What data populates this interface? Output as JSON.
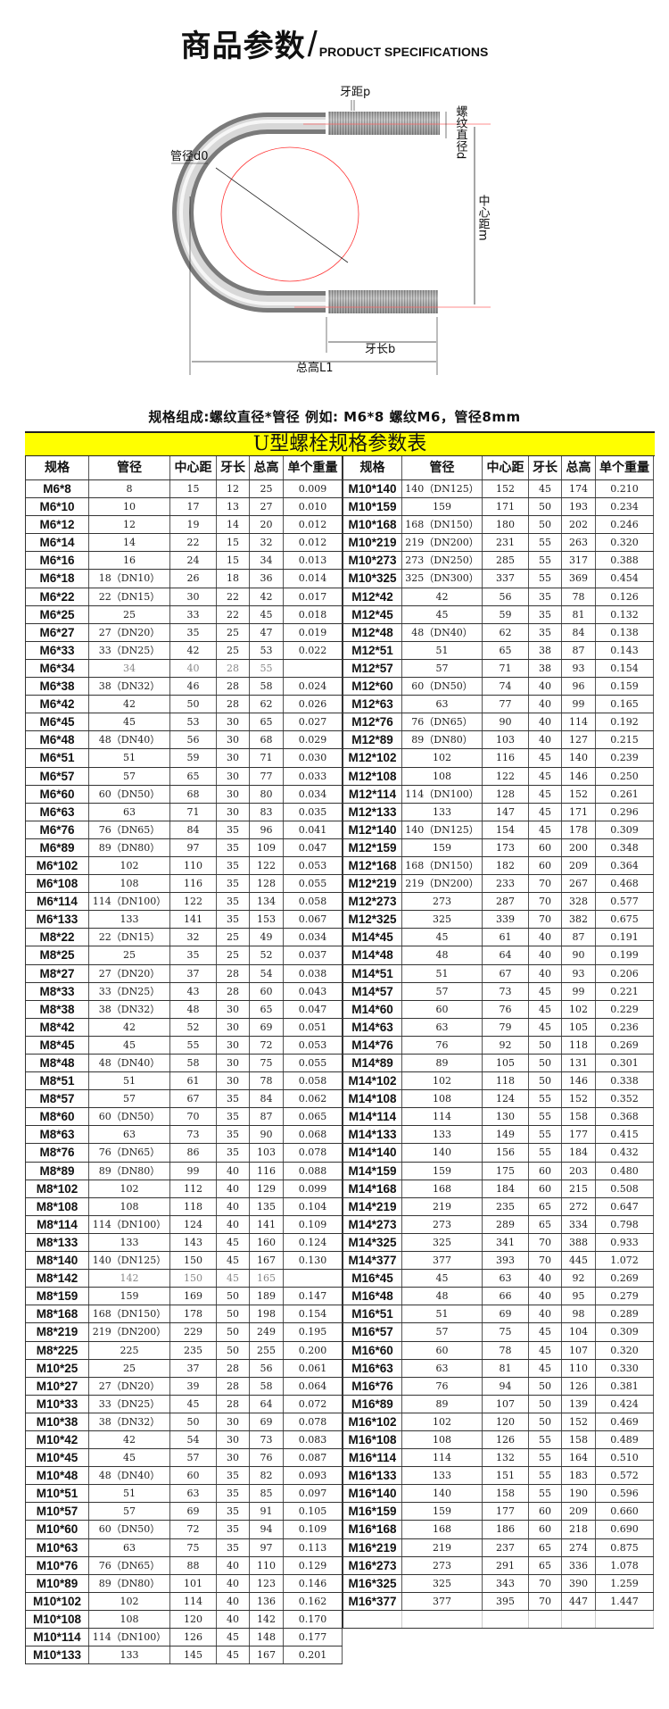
{
  "header": {
    "title_cn": "商品参数",
    "title_sep": "/",
    "title_en": "PRODUCT SPECIFICATIONS"
  },
  "diagram": {
    "labels": {
      "pitch": "牙距p",
      "thread_diameter": "螺纹直径d",
      "pipe_diameter": "管径d0",
      "center_distance": "中心距m",
      "thread_length": "牙长b",
      "total_height": "总高L1"
    },
    "colors": {
      "bolt": "#b8b8b8",
      "guide_circle": "#ff3333"
    }
  },
  "description": "规格组成:螺纹直径*管径 例如: M6*8 螺纹M6，管径8mm",
  "table": {
    "title": "U型螺栓规格参数表",
    "title_bg": "#ffff00",
    "columns": [
      "规格",
      "管径",
      "中心距",
      "牙长",
      "总高",
      "单个重量"
    ],
    "muted_rows": [
      "M6*34",
      "M8*142"
    ],
    "left_rows": [
      [
        "M6*8",
        "8",
        "15",
        "12",
        "25",
        "0.009"
      ],
      [
        "M6*10",
        "10",
        "17",
        "13",
        "27",
        "0.010"
      ],
      [
        "M6*12",
        "12",
        "19",
        "14",
        "20",
        "0.012"
      ],
      [
        "M6*14",
        "14",
        "22",
        "15",
        "32",
        "0.012"
      ],
      [
        "M6*16",
        "16",
        "24",
        "15",
        "34",
        "0.013"
      ],
      [
        "M6*18",
        "18（DN10）",
        "26",
        "18",
        "36",
        "0.014"
      ],
      [
        "M6*22",
        "22（DN15）",
        "30",
        "22",
        "42",
        "0.017"
      ],
      [
        "M6*25",
        "25",
        "33",
        "22",
        "45",
        "0.018"
      ],
      [
        "M6*27",
        "27（DN20）",
        "35",
        "25",
        "47",
        "0.019"
      ],
      [
        "M6*33",
        "33（DN25）",
        "42",
        "25",
        "53",
        "0.022"
      ],
      [
        "M6*34",
        "34",
        "40",
        "28",
        "55",
        ""
      ],
      [
        "M6*38",
        "38（DN32）",
        "46",
        "28",
        "58",
        "0.024"
      ],
      [
        "M6*42",
        "42",
        "50",
        "28",
        "62",
        "0.026"
      ],
      [
        "M6*45",
        "45",
        "53",
        "30",
        "65",
        "0.027"
      ],
      [
        "M6*48",
        "48（DN40）",
        "56",
        "30",
        "68",
        "0.029"
      ],
      [
        "M6*51",
        "51",
        "59",
        "30",
        "71",
        "0.030"
      ],
      [
        "M6*57",
        "57",
        "65",
        "30",
        "77",
        "0.033"
      ],
      [
        "M6*60",
        "60（DN50）",
        "68",
        "30",
        "80",
        "0.034"
      ],
      [
        "M6*63",
        "63",
        "71",
        "30",
        "83",
        "0.035"
      ],
      [
        "M6*76",
        "76（DN65）",
        "84",
        "35",
        "96",
        "0.041"
      ],
      [
        "M6*89",
        "89（DN80）",
        "97",
        "35",
        "109",
        "0.047"
      ],
      [
        "M6*102",
        "102",
        "110",
        "35",
        "122",
        "0.053"
      ],
      [
        "M6*108",
        "108",
        "116",
        "35",
        "128",
        "0.055"
      ],
      [
        "M6*114",
        "114（DN100）",
        "122",
        "35",
        "134",
        "0.058"
      ],
      [
        "M6*133",
        "133",
        "141",
        "35",
        "153",
        "0.067"
      ],
      [
        "M8*22",
        "22（DN15）",
        "32",
        "25",
        "49",
        "0.034"
      ],
      [
        "M8*25",
        "25",
        "35",
        "25",
        "52",
        "0.037"
      ],
      [
        "M8*27",
        "27（DN20）",
        "37",
        "28",
        "54",
        "0.038"
      ],
      [
        "M8*33",
        "33（DN25）",
        "43",
        "28",
        "60",
        "0.043"
      ],
      [
        "M8*38",
        "38（DN32）",
        "48",
        "30",
        "65",
        "0.047"
      ],
      [
        "M8*42",
        "42",
        "52",
        "30",
        "69",
        "0.051"
      ],
      [
        "M8*45",
        "45",
        "55",
        "30",
        "72",
        "0.053"
      ],
      [
        "M8*48",
        "48（DN40）",
        "58",
        "30",
        "75",
        "0.055"
      ],
      [
        "M8*51",
        "51",
        "61",
        "30",
        "78",
        "0.058"
      ],
      [
        "M8*57",
        "57",
        "67",
        "35",
        "84",
        "0.062"
      ],
      [
        "M8*60",
        "60（DN50）",
        "70",
        "35",
        "87",
        "0.065"
      ],
      [
        "M8*63",
        "63",
        "73",
        "35",
        "90",
        "0.068"
      ],
      [
        "M8*76",
        "76（DN65）",
        "86",
        "35",
        "103",
        "0.078"
      ],
      [
        "M8*89",
        "89（DN80）",
        "99",
        "40",
        "116",
        "0.088"
      ],
      [
        "M8*102",
        "102",
        "112",
        "40",
        "129",
        "0.099"
      ],
      [
        "M8*108",
        "108",
        "118",
        "40",
        "135",
        "0.104"
      ],
      [
        "M8*114",
        "114（DN100）",
        "124",
        "40",
        "141",
        "0.109"
      ],
      [
        "M8*133",
        "133",
        "143",
        "45",
        "160",
        "0.124"
      ],
      [
        "M8*140",
        "140（DN125）",
        "150",
        "45",
        "167",
        "0.130"
      ],
      [
        "M8*142",
        "142",
        "150",
        "45",
        "165",
        ""
      ],
      [
        "M8*159",
        "159",
        "169",
        "50",
        "189",
        "0.147"
      ],
      [
        "M8*168",
        "168（DN150）",
        "178",
        "50",
        "198",
        "0.154"
      ],
      [
        "M8*219",
        "219（DN200）",
        "229",
        "50",
        "249",
        "0.195"
      ],
      [
        "M8*225",
        "225",
        "235",
        "50",
        "255",
        "0.200"
      ],
      [
        "M10*25",
        "25",
        "37",
        "28",
        "56",
        "0.061"
      ],
      [
        "M10*27",
        "27（DN20）",
        "39",
        "28",
        "58",
        "0.064"
      ],
      [
        "M10*33",
        "33（DN25）",
        "45",
        "28",
        "64",
        "0.072"
      ],
      [
        "M10*38",
        "38（DN32）",
        "50",
        "30",
        "69",
        "0.078"
      ],
      [
        "M10*42",
        "42",
        "54",
        "30",
        "73",
        "0.083"
      ],
      [
        "M10*45",
        "45",
        "57",
        "30",
        "76",
        "0.087"
      ],
      [
        "M10*48",
        "48（DN40）",
        "60",
        "35",
        "82",
        "0.093"
      ],
      [
        "M10*51",
        "51",
        "63",
        "35",
        "85",
        "0.097"
      ],
      [
        "M10*57",
        "57",
        "69",
        "35",
        "91",
        "0.105"
      ],
      [
        "M10*60",
        "60（DN50）",
        "72",
        "35",
        "94",
        "0.109"
      ],
      [
        "M10*63",
        "63",
        "75",
        "35",
        "97",
        "0.113"
      ],
      [
        "M10*76",
        "76（DN65）",
        "88",
        "40",
        "110",
        "0.129"
      ],
      [
        "M10*89",
        "89（DN80）",
        "101",
        "40",
        "123",
        "0.146"
      ],
      [
        "M10*102",
        "102",
        "114",
        "40",
        "136",
        "0.162"
      ],
      [
        "M10*108",
        "108",
        "120",
        "40",
        "142",
        "0.170"
      ],
      [
        "M10*114",
        "114（DN100）",
        "126",
        "45",
        "148",
        "0.177"
      ],
      [
        "M10*133",
        "133",
        "145",
        "45",
        "167",
        "0.201"
      ]
    ],
    "right_rows": [
      [
        "M10*140",
        "140（DN125）",
        "152",
        "45",
        "174",
        "0.210"
      ],
      [
        "M10*159",
        "159",
        "171",
        "50",
        "193",
        "0.234"
      ],
      [
        "M10*168",
        "168（DN150）",
        "180",
        "50",
        "202",
        "0.246"
      ],
      [
        "M10*219",
        "219（DN200）",
        "231",
        "55",
        "263",
        "0.320"
      ],
      [
        "M10*273",
        "273（DN250）",
        "285",
        "55",
        "317",
        "0.388"
      ],
      [
        "M10*325",
        "325（DN300）",
        "337",
        "55",
        "369",
        "0.454"
      ],
      [
        "M12*42",
        "42",
        "56",
        "35",
        "78",
        "0.126"
      ],
      [
        "M12*45",
        "45",
        "59",
        "35",
        "81",
        "0.132"
      ],
      [
        "M12*48",
        "48（DN40）",
        "62",
        "35",
        "84",
        "0.138"
      ],
      [
        "M12*51",
        "51",
        "65",
        "38",
        "87",
        "0.143"
      ],
      [
        "M12*57",
        "57",
        "71",
        "38",
        "93",
        "0.154"
      ],
      [
        "M12*60",
        "60（DN50）",
        "74",
        "40",
        "96",
        "0.159"
      ],
      [
        "M12*63",
        "63",
        "77",
        "40",
        "99",
        "0.165"
      ],
      [
        "M12*76",
        "76（DN65）",
        "90",
        "40",
        "114",
        "0.192"
      ],
      [
        "M12*89",
        "89（DN80）",
        "103",
        "40",
        "127",
        "0.215"
      ],
      [
        "M12*102",
        "102",
        "116",
        "45",
        "140",
        "0.239"
      ],
      [
        "M12*108",
        "108",
        "122",
        "45",
        "146",
        "0.250"
      ],
      [
        "M12*114",
        "114（DN100）",
        "128",
        "45",
        "152",
        "0.261"
      ],
      [
        "M12*133",
        "133",
        "147",
        "45",
        "171",
        "0.296"
      ],
      [
        "M12*140",
        "140（DN125）",
        "154",
        "45",
        "178",
        "0.309"
      ],
      [
        "M12*159",
        "159",
        "173",
        "60",
        "200",
        "0.348"
      ],
      [
        "M12*168",
        "168（DN150）",
        "182",
        "60",
        "209",
        "0.364"
      ],
      [
        "M12*219",
        "219（DN200）",
        "233",
        "70",
        "267",
        "0.468"
      ],
      [
        "M12*273",
        "273",
        "287",
        "70",
        "328",
        "0.577"
      ],
      [
        "M12*325",
        "325",
        "339",
        "70",
        "382",
        "0.675"
      ],
      [
        "M14*45",
        "45",
        "61",
        "40",
        "87",
        "0.191"
      ],
      [
        "M14*48",
        "48",
        "64",
        "40",
        "90",
        "0.199"
      ],
      [
        "M14*51",
        "51",
        "67",
        "40",
        "93",
        "0.206"
      ],
      [
        "M14*57",
        "57",
        "73",
        "45",
        "99",
        "0.221"
      ],
      [
        "M14*60",
        "60",
        "76",
        "45",
        "102",
        "0.229"
      ],
      [
        "M14*63",
        "63",
        "79",
        "45",
        "105",
        "0.236"
      ],
      [
        "M14*76",
        "76",
        "92",
        "50",
        "118",
        "0.269"
      ],
      [
        "M14*89",
        "89",
        "105",
        "50",
        "131",
        "0.301"
      ],
      [
        "M14*102",
        "102",
        "118",
        "50",
        "146",
        "0.338"
      ],
      [
        "M14*108",
        "108",
        "124",
        "55",
        "152",
        "0.352"
      ],
      [
        "M14*114",
        "114",
        "130",
        "55",
        "158",
        "0.368"
      ],
      [
        "M14*133",
        "133",
        "149",
        "55",
        "177",
        "0.415"
      ],
      [
        "M14*140",
        "140",
        "156",
        "55",
        "184",
        "0.432"
      ],
      [
        "M14*159",
        "159",
        "175",
        "60",
        "203",
        "0.480"
      ],
      [
        "M14*168",
        "168",
        "184",
        "60",
        "215",
        "0.508"
      ],
      [
        "M14*219",
        "219",
        "235",
        "65",
        "272",
        "0.647"
      ],
      [
        "M14*273",
        "273",
        "289",
        "65",
        "334",
        "0.798"
      ],
      [
        "M14*325",
        "325",
        "341",
        "70",
        "388",
        "0.933"
      ],
      [
        "M14*377",
        "377",
        "393",
        "70",
        "445",
        "1.072"
      ],
      [
        "M16*45",
        "45",
        "63",
        "40",
        "92",
        "0.269"
      ],
      [
        "M16*48",
        "48",
        "66",
        "40",
        "95",
        "0.279"
      ],
      [
        "M16*51",
        "51",
        "69",
        "40",
        "98",
        "0.289"
      ],
      [
        "M16*57",
        "57",
        "75",
        "45",
        "104",
        "0.309"
      ],
      [
        "M16*60",
        "60",
        "78",
        "45",
        "107",
        "0.320"
      ],
      [
        "M16*63",
        "63",
        "81",
        "45",
        "110",
        "0.330"
      ],
      [
        "M16*76",
        "76",
        "94",
        "50",
        "126",
        "0.381"
      ],
      [
        "M16*89",
        "89",
        "107",
        "50",
        "139",
        "0.424"
      ],
      [
        "M16*102",
        "102",
        "120",
        "50",
        "152",
        "0.469"
      ],
      [
        "M16*108",
        "108",
        "126",
        "55",
        "158",
        "0.489"
      ],
      [
        "M16*114",
        "114",
        "132",
        "55",
        "164",
        "0.510"
      ],
      [
        "M16*133",
        "133",
        "151",
        "55",
        "183",
        "0.572"
      ],
      [
        "M16*140",
        "140",
        "158",
        "55",
        "190",
        "0.596"
      ],
      [
        "M16*159",
        "159",
        "177",
        "60",
        "209",
        "0.660"
      ],
      [
        "M16*168",
        "168",
        "186",
        "60",
        "218",
        "0.690"
      ],
      [
        "M16*219",
        "219",
        "237",
        "65",
        "274",
        "0.875"
      ],
      [
        "M16*273",
        "273",
        "291",
        "65",
        "336",
        "1.078"
      ],
      [
        "M16*325",
        "325",
        "343",
        "70",
        "390",
        "1.259"
      ],
      [
        "M16*377",
        "377",
        "395",
        "70",
        "447",
        "1.447"
      ]
    ]
  }
}
